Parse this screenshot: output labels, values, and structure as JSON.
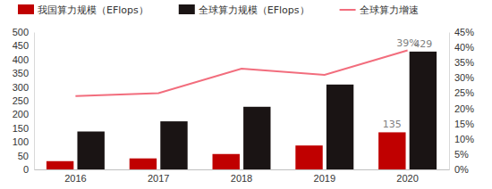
{
  "chart_data": {
    "type": "bar",
    "categories": [
      "2016",
      "2017",
      "2018",
      "2019",
      "2020"
    ],
    "series": [
      {
        "name": "我国算力规模（EFlops）",
        "type": "bar",
        "color": "#c00000",
        "values": [
          30,
          40,
          56,
          87,
          135
        ],
        "value_labels": [
          null,
          null,
          null,
          null,
          "135"
        ]
      },
      {
        "name": "全球算力规模（EFlops）",
        "type": "bar",
        "color": "#1a1414",
        "values": [
          138,
          175,
          228,
          309,
          429
        ],
        "value_labels": [
          null,
          null,
          null,
          null,
          "429"
        ]
      },
      {
        "name": "全球算力增速",
        "type": "line",
        "axis": "y2",
        "color": "#f26d7d",
        "values": [
          24,
          25,
          33,
          31,
          39
        ],
        "value_labels": [
          null,
          null,
          null,
          null,
          "39%"
        ]
      }
    ],
    "ylim": [
      0,
      500
    ],
    "yticks": [
      0,
      50,
      100,
      150,
      200,
      250,
      300,
      350,
      400,
      450,
      500
    ],
    "y2lim": [
      0,
      45
    ],
    "y2ticks": [
      {
        "value": 0,
        "label": "0%"
      },
      {
        "value": 5,
        "label": "5%"
      },
      {
        "value": 10,
        "label": "10%"
      },
      {
        "value": 15,
        "label": "15%"
      },
      {
        "value": 20,
        "label": "20%"
      },
      {
        "value": 25,
        "label": "25%"
      },
      {
        "value": 30,
        "label": "30%"
      },
      {
        "value": 35,
        "label": "35%"
      },
      {
        "value": 40,
        "label": "40%"
      },
      {
        "value": 45,
        "label": "45%"
      }
    ],
    "legend": "top",
    "grid": false
  }
}
